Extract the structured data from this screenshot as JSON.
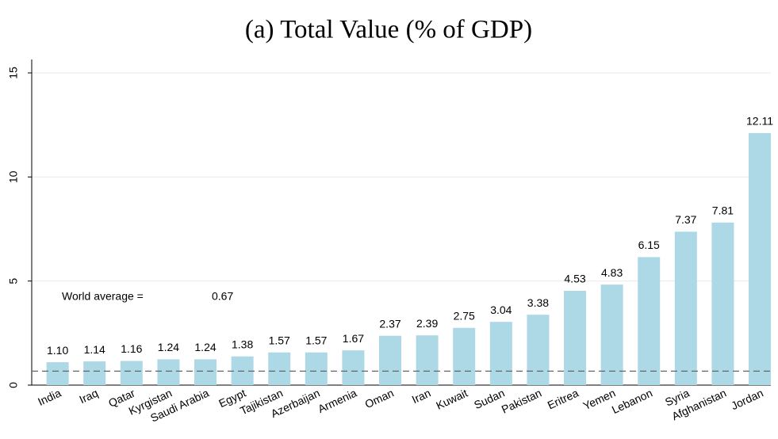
{
  "chart_data": {
    "type": "bar",
    "title": "(a) Total Value (% of GDP)",
    "categories": [
      "India",
      "Iraq",
      "Qatar",
      "Kyrgistan",
      "Saudi Arabia",
      "Egypt",
      "Tajikistan",
      "Azerbaijan",
      "Armenia",
      "Oman",
      "Iran",
      "Kuwait",
      "Sudan",
      "Pakistan",
      "Eritrea",
      "Yemen",
      "Lebanon",
      "Syria",
      "Afghanistan",
      "Jordan"
    ],
    "values": [
      1.1,
      1.14,
      1.16,
      1.24,
      1.24,
      1.38,
      1.57,
      1.57,
      1.67,
      2.37,
      2.39,
      2.75,
      3.04,
      3.38,
      4.53,
      4.83,
      6.15,
      7.37,
      7.81,
      12.11
    ],
    "value_labels": [
      "1.10",
      "1.14",
      "1.16",
      "1.24",
      "1.24",
      "1.38",
      "1.57",
      "1.57",
      "1.67",
      "2.37",
      "2.39",
      "2.75",
      "3.04",
      "3.38",
      "4.53",
      "4.83",
      "6.15",
      "7.37",
      "7.81",
      "12.11"
    ],
    "color": "#add8e6",
    "ylim": [
      0,
      15
    ],
    "yticks": [
      0,
      5,
      10,
      15
    ],
    "grid": true,
    "world_average": {
      "label": "World average =",
      "value": 0.67
    }
  }
}
